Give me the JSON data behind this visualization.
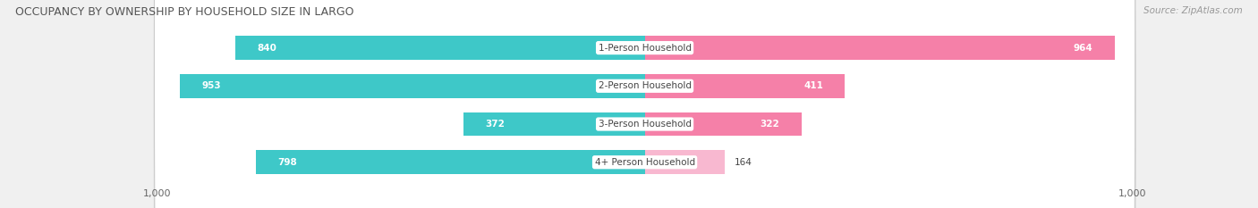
{
  "title": "OCCUPANCY BY OWNERSHIP BY HOUSEHOLD SIZE IN LARGO",
  "source": "Source: ZipAtlas.com",
  "categories": [
    "1-Person Household",
    "2-Person Household",
    "3-Person Household",
    "4+ Person Household"
  ],
  "owner_values": [
    840,
    953,
    372,
    798
  ],
  "renter_values": [
    964,
    411,
    322,
    164
  ],
  "owner_color_full": "#3ec8c8",
  "owner_color_light": "#a8dede",
  "renter_color_full": "#f580a8",
  "renter_color_light": "#f8b8d0",
  "axis_max": 1000,
  "bg_color": "#f0f0f0",
  "bar_bg_color": "#ffffff",
  "title_fontsize": 9,
  "source_fontsize": 7.5,
  "label_fontsize": 7.5,
  "value_fontsize": 7.5,
  "axis_label_fontsize": 8,
  "bar_height": 0.62,
  "inside_threshold": 300
}
